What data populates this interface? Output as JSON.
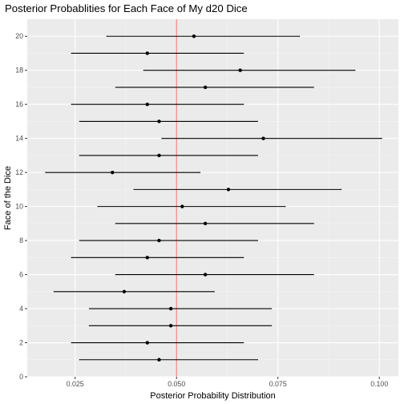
{
  "chart_data": {
    "type": "errorbar",
    "title": "Posterior Probablities for Each Face of My d20 Dice",
    "xlabel": "Posterior Probability Distribution",
    "ylabel": "Face of the Dice",
    "xlim": [
      0.0132,
      0.1047
    ],
    "ylim": [
      0,
      21
    ],
    "x_ticks": [
      0.025,
      0.05,
      0.075,
      0.1
    ],
    "x_tick_labels": [
      "0.025",
      "0.050",
      "0.075",
      "0.100"
    ],
    "y_ticks": [
      0,
      2,
      4,
      6,
      8,
      10,
      12,
      14,
      16,
      18,
      20
    ],
    "y_tick_labels": [
      "0",
      "2",
      "4",
      "6",
      "8",
      "10",
      "12",
      "14",
      "16",
      "18",
      "20"
    ],
    "reference_line": {
      "x": 0.05,
      "color": "#f8766d"
    },
    "grid": true,
    "panel_background": "#ebebeb",
    "points": [
      {
        "face": 1,
        "estimate": 0.0457,
        "lower": 0.0261,
        "upper": 0.07
      },
      {
        "face": 2,
        "estimate": 0.0428,
        "lower": 0.0241,
        "upper": 0.0665
      },
      {
        "face": 3,
        "estimate": 0.0486,
        "lower": 0.0285,
        "upper": 0.0734
      },
      {
        "face": 4,
        "estimate": 0.0486,
        "lower": 0.0285,
        "upper": 0.0734
      },
      {
        "face": 5,
        "estimate": 0.0371,
        "lower": 0.0198,
        "upper": 0.0593
      },
      {
        "face": 6,
        "estimate": 0.0571,
        "lower": 0.035,
        "upper": 0.0838
      },
      {
        "face": 7,
        "estimate": 0.0428,
        "lower": 0.0241,
        "upper": 0.0665
      },
      {
        "face": 8,
        "estimate": 0.0457,
        "lower": 0.0261,
        "upper": 0.07
      },
      {
        "face": 9,
        "estimate": 0.0571,
        "lower": 0.035,
        "upper": 0.0838
      },
      {
        "face": 10,
        "estimate": 0.0514,
        "lower": 0.0306,
        "upper": 0.0768
      },
      {
        "face": 11,
        "estimate": 0.0628,
        "lower": 0.0395,
        "upper": 0.0906
      },
      {
        "face": 12,
        "estimate": 0.0342,
        "lower": 0.0177,
        "upper": 0.0558
      },
      {
        "face": 13,
        "estimate": 0.0457,
        "lower": 0.0261,
        "upper": 0.07
      },
      {
        "face": 14,
        "estimate": 0.0714,
        "lower": 0.0464,
        "upper": 0.1006
      },
      {
        "face": 15,
        "estimate": 0.0457,
        "lower": 0.0261,
        "upper": 0.07
      },
      {
        "face": 16,
        "estimate": 0.0428,
        "lower": 0.0241,
        "upper": 0.0665
      },
      {
        "face": 17,
        "estimate": 0.0571,
        "lower": 0.035,
        "upper": 0.0838
      },
      {
        "face": 18,
        "estimate": 0.0657,
        "lower": 0.0419,
        "upper": 0.094
      },
      {
        "face": 19,
        "estimate": 0.0428,
        "lower": 0.0241,
        "upper": 0.0665
      },
      {
        "face": 20,
        "estimate": 0.0543,
        "lower": 0.0328,
        "upper": 0.0803
      }
    ]
  }
}
